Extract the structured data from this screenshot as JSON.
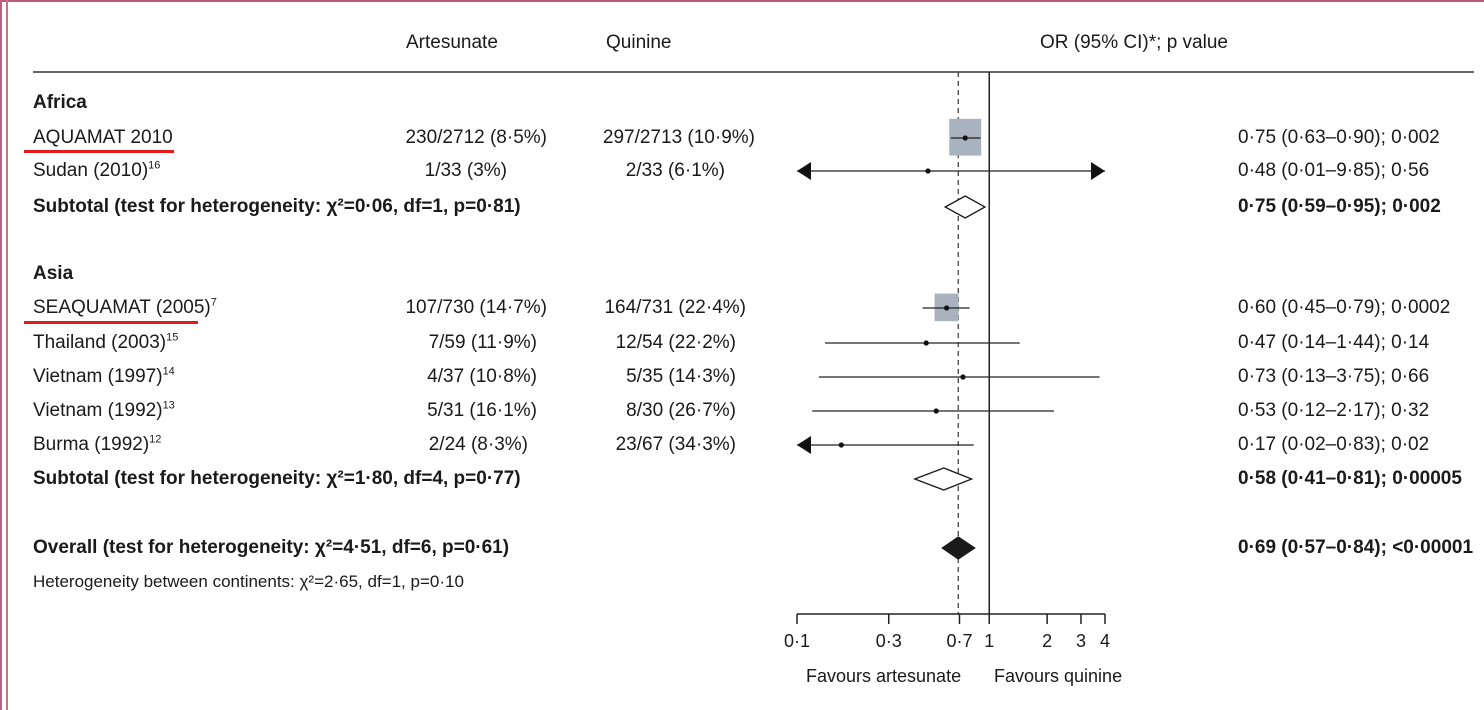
{
  "headers": {
    "artesunate": "Artesunate",
    "quinine": "Quinine",
    "or": "OR (95% CI)*; p value"
  },
  "groups": [
    {
      "name": "Africa",
      "studies": [
        {
          "study": "AQUAMAT 2010",
          "ref": "",
          "underlined": true,
          "artesunate": "230/2712 (8·5%)",
          "quinine": "297/2713 (10·9%)",
          "or_text": "0·75 (0·63–0·90); 0·002"
        },
        {
          "study": "Sudan (2010)",
          "ref": "16",
          "underlined": false,
          "artesunate": "1/33 (3%)",
          "quinine": "2/33 (6·1%)",
          "or_text": "0·48 (0·01–9·85); 0·56"
        }
      ],
      "subtotal": {
        "label": "Subtotal (test for heterogeneity: χ²=0·06, df=1, p=0·81)",
        "or_text": "0·75 (0·59–0·95); 0·002"
      }
    },
    {
      "name": "Asia",
      "studies": [
        {
          "study": "SEAQUAMAT (2005)",
          "ref": "7",
          "underlined": true,
          "artesunate": "107/730 (14·7%)",
          "quinine": "164/731 (22·4%)",
          "or_text": "0·60 (0·45–0·79); 0·0002"
        },
        {
          "study": "Thailand (2003)",
          "ref": "15",
          "underlined": false,
          "artesunate": "7/59 (11·9%)",
          "quinine": "12/54 (22·2%)",
          "or_text": "0·47 (0·14–1·44); 0·14"
        },
        {
          "study": "Vietnam (1997)",
          "ref": "14",
          "underlined": false,
          "artesunate": "4/37 (10·8%)",
          "quinine": "5/35 (14·3%)",
          "or_text": "0·73 (0·13–3·75); 0·66"
        },
        {
          "study": "Vietnam (1992)",
          "ref": "13",
          "underlined": false,
          "artesunate": "5/31 (16·1%)",
          "quinine": "8/30 (26·7%)",
          "or_text": "0·53 (0·12–2·17); 0·32"
        },
        {
          "study": "Burma (1992)",
          "ref": "12",
          "underlined": false,
          "artesunate": "2/24 (8·3%)",
          "quinine": "23/67 (34·3%)",
          "or_text": "0·17 (0·02–0·83); 0·02"
        }
      ],
      "subtotal": {
        "label": "Subtotal (test for heterogeneity: χ²=1·80, df=4, p=0·77)",
        "or_text": "0·58 (0·41–0·81); 0·00005"
      }
    }
  ],
  "overall": {
    "label": "Overall (test for heterogeneity: χ²=4·51, df=6, p=0·61)",
    "or_text": "0·69 (0·57–0·84); <0·00001"
  },
  "between_continents": "Heterogeneity between continents: χ²=2·65, df=1, p=0·10",
  "axis": {
    "favours_left": "Favours artesunate",
    "favours_right": "Favours quinine"
  },
  "colors": {
    "underline": "#e51a1a",
    "weight_box": "#a9b3bf",
    "frame": "#c06080"
  },
  "chart_data": {
    "type": "forest",
    "xscale": "log",
    "xlim": [
      0.1,
      4
    ],
    "xticks": [
      0.1,
      0.3,
      0.7,
      1,
      2,
      3,
      4
    ],
    "xtick_labels": [
      "0·1",
      "0·3",
      "0·7",
      "1",
      "2",
      "3",
      "4"
    ],
    "reference_line": 1,
    "pooled_dashed_line": 0.69,
    "studies": [
      {
        "label": "AQUAMAT 2010",
        "or": 0.75,
        "lo": 0.63,
        "hi": 0.9,
        "weight_box": true
      },
      {
        "label": "Sudan (2010)",
        "or": 0.48,
        "lo": 0.01,
        "hi": 9.85,
        "arrow_left": true,
        "arrow_right": true
      },
      {
        "label": "Subtotal Africa",
        "or": 0.75,
        "lo": 0.59,
        "hi": 0.95,
        "diamond": "open"
      },
      {
        "label": "SEAQUAMAT (2005)",
        "or": 0.6,
        "lo": 0.45,
        "hi": 0.79,
        "weight_box": true
      },
      {
        "label": "Thailand (2003)",
        "or": 0.47,
        "lo": 0.14,
        "hi": 1.44
      },
      {
        "label": "Vietnam (1997)",
        "or": 0.73,
        "lo": 0.13,
        "hi": 3.75
      },
      {
        "label": "Vietnam (1992)",
        "or": 0.53,
        "lo": 0.12,
        "hi": 2.17
      },
      {
        "label": "Burma (1992)",
        "or": 0.17,
        "lo": 0.02,
        "hi": 0.83,
        "arrow_left": true
      },
      {
        "label": "Subtotal Asia",
        "or": 0.58,
        "lo": 0.41,
        "hi": 0.81,
        "diamond": "open"
      },
      {
        "label": "Overall",
        "or": 0.69,
        "lo": 0.57,
        "hi": 0.84,
        "diamond": "filled"
      }
    ]
  }
}
